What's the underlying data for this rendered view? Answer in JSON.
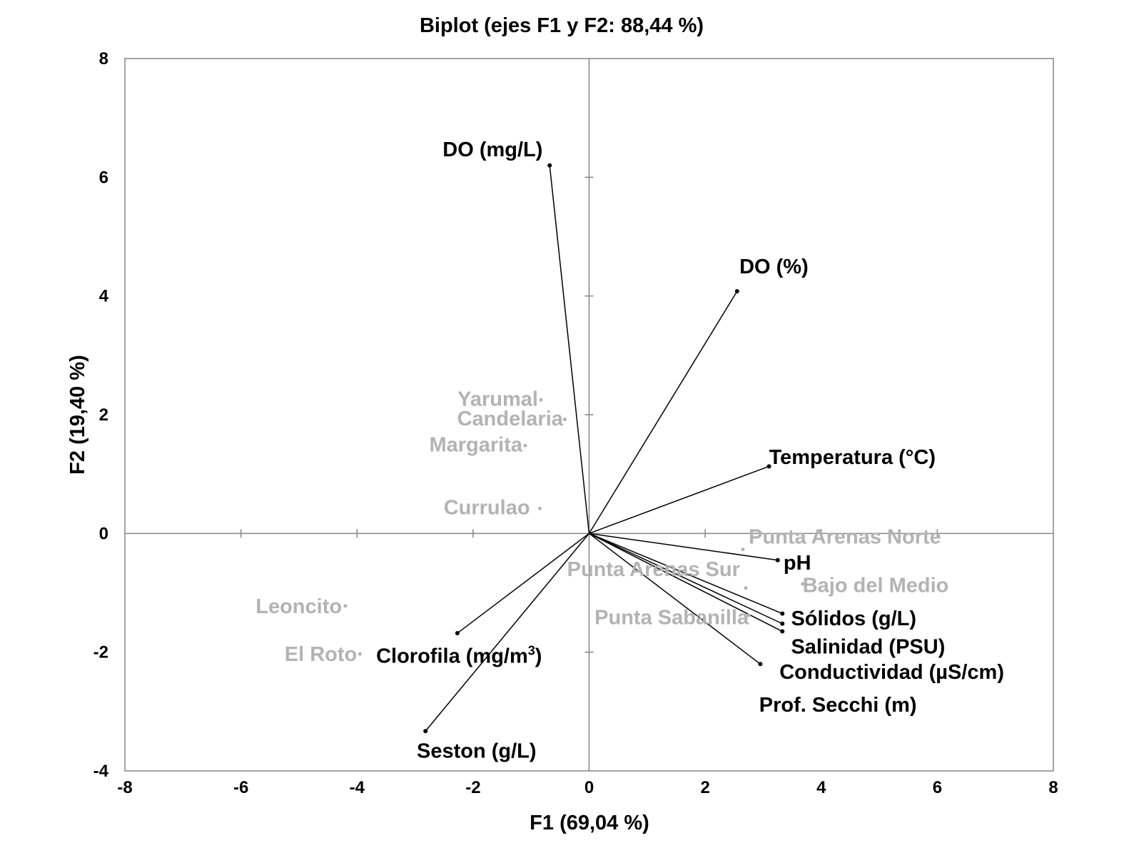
{
  "chart_data": {
    "type": "scatter",
    "title": "Biplot (ejes F1 y F2: 88,44 %)",
    "xlabel": "F1 (69,04 %)",
    "ylabel": "F2 (19,40 %)",
    "xlim": [
      -8,
      8
    ],
    "ylim": [
      -4,
      8
    ],
    "xticks": [
      -8,
      -6,
      -4,
      -2,
      0,
      2,
      4,
      6,
      8
    ],
    "yticks": [
      -4,
      -2,
      0,
      2,
      4,
      6,
      8
    ],
    "grid": false,
    "legend": "none",
    "colors": {
      "variables": "#000000",
      "observations": "#b3b3b3"
    },
    "variables": [
      {
        "name": "DO (mg/L)",
        "x": -0.68,
        "y": 6.2,
        "label_anchor": "end",
        "label_dx": -0.12,
        "label_dy": 0.15
      },
      {
        "name": "DO (%)",
        "x": 2.55,
        "y": 4.08,
        "label_anchor": "start",
        "label_dx": 0.04,
        "label_dy": 0.3
      },
      {
        "name": "Temperatura (°C)",
        "x": 3.1,
        "y": 1.13,
        "label_anchor": "start",
        "label_dx": 0.0,
        "label_dy": 0.04
      },
      {
        "name": "pH",
        "x": 3.25,
        "y": -0.45,
        "label_anchor": "start",
        "label_dx": 0.1,
        "label_dy": -0.16
      },
      {
        "name": "Sólidos (g/L)",
        "x": 3.33,
        "y": -1.35,
        "label_anchor": "start",
        "label_dx": 0.15,
        "label_dy": -0.2
      },
      {
        "name": "Salinidad (PSU)",
        "x": 3.33,
        "y": -1.52,
        "label_anchor": "start",
        "label_dx": 0.15,
        "label_dy": -0.5
      },
      {
        "name": "Conductividad (µS/cm)",
        "x": 3.33,
        "y": -1.65,
        "label_anchor": "start",
        "label_dx": -0.05,
        "label_dy": -0.8
      },
      {
        "name": "Prof. Secchi (m)",
        "x": 2.95,
        "y": -2.2,
        "label_anchor": "start",
        "label_dx": -0.02,
        "label_dy": -0.8
      },
      {
        "name": "Clorofila (mg/m",
        "sup": "3",
        "suffix": ")",
        "x": -2.27,
        "y": -1.68,
        "label_anchor": "start",
        "label_dx": -1.4,
        "label_dy": -0.5
      },
      {
        "name": "Seston (g/L)",
        "x": -2.82,
        "y": -3.33,
        "label_anchor": "start",
        "label_dx": -0.15,
        "label_dy": -0.45
      }
    ],
    "observations": [
      {
        "name": "Yarumal",
        "x": -0.83,
        "y": 2.25,
        "label_anchor": "end",
        "label_dx": -0.05,
        "label_dy": -0.1
      },
      {
        "name": "Candelaria",
        "x": -0.42,
        "y": 1.92,
        "label_anchor": "end",
        "label_dx": -0.03,
        "label_dy": -0.1
      },
      {
        "name": "Margarita",
        "x": -1.1,
        "y": 1.48,
        "label_anchor": "end",
        "label_dx": -0.05,
        "label_dy": -0.1
      },
      {
        "name": "Currulao",
        "x": -0.85,
        "y": 0.42,
        "label_anchor": "end",
        "label_dx": -0.17,
        "label_dy": -0.1
      },
      {
        "name": "Leoncito",
        "x": -4.2,
        "y": -1.22,
        "label_anchor": "end",
        "label_dx": -0.06,
        "label_dy": -0.12
      },
      {
        "name": "El Roto",
        "x": -3.95,
        "y": -2.03,
        "label_anchor": "end",
        "label_dx": -0.05,
        "label_dy": -0.12
      },
      {
        "name": "Punta Arenas Norte",
        "x": 2.65,
        "y": -0.27,
        "label_anchor": "start",
        "label_dx": 0.1,
        "label_dy": 0.1
      },
      {
        "name": "Punta Arenas Sur",
        "x": 2.7,
        "y": -0.92,
        "label_anchor": "end",
        "label_dx": -0.1,
        "label_dy": 0.2
      },
      {
        "name": "Bajo del Medio",
        "x": 3.68,
        "y": -0.85,
        "label_anchor": "start",
        "label_dx": 0.0,
        "label_dy": -0.14
      },
      {
        "name": "Punta Sabanilla",
        "x": 2.75,
        "y": -1.38,
        "label_anchor": "end",
        "label_dx": 0.0,
        "label_dy": -0.15
      }
    ]
  }
}
